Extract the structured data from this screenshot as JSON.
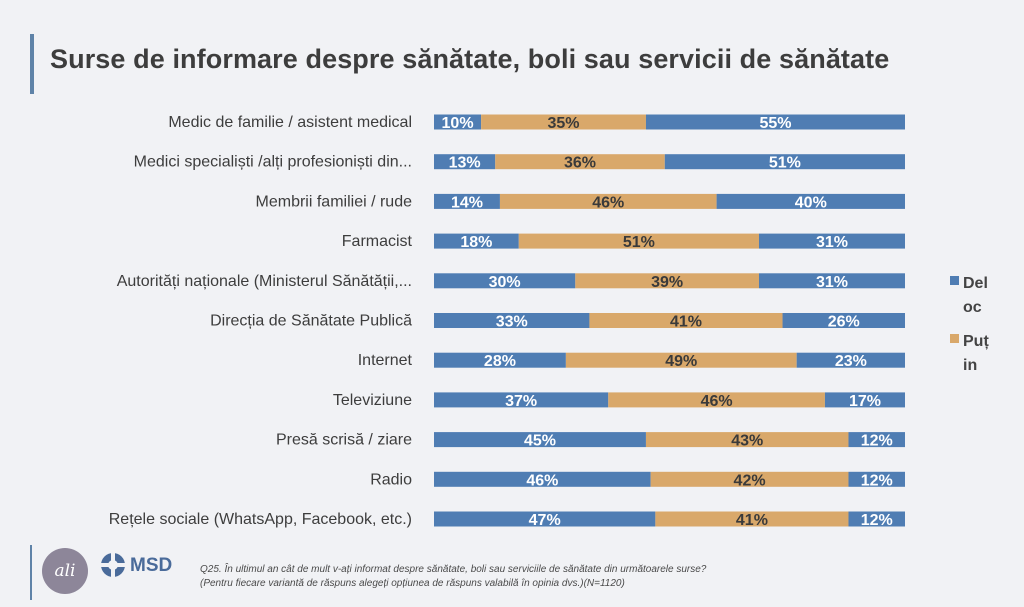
{
  "title": "Surse de informare despre sănătate, boli sau servicii de sănătate",
  "colors": {
    "dark": "#4f7db3",
    "light": "#d9a86a",
    "accent": "#5f83a8"
  },
  "legend": [
    {
      "label": "Deloc",
      "line1": "Del",
      "line2": "oc",
      "color": "#4f7db3"
    },
    {
      "label": "Puțin",
      "line1": "Puț",
      "line2": "in",
      "color": "#d9a86a"
    }
  ],
  "chart_data": {
    "type": "bar",
    "orientation": "horizontal",
    "stacked": true,
    "normalized_percent": true,
    "categories": [
      "Medic de familie / asistent medical",
      "Medici specialiști /alți profesioniști din...",
      "Membrii familiei / rude",
      "Farmacist",
      "Autorități naționale (Ministerul Sănătății,...",
      "Direcția de Sănătate Publică",
      "Internet",
      "Televiziune",
      "Presă scrisă / ziare",
      "Radio",
      "Rețele sociale (WhatsApp, Facebook, etc.)"
    ],
    "series": [
      {
        "name": "Deloc",
        "color": "#4f7db3",
        "values": [
          10,
          13,
          14,
          18,
          30,
          33,
          28,
          37,
          45,
          46,
          47
        ]
      },
      {
        "name": "Puțin",
        "color": "#d9a86a",
        "values": [
          35,
          36,
          46,
          51,
          39,
          41,
          49,
          46,
          43,
          42,
          41
        ]
      },
      {
        "color": "#4f7db3",
        "values": [
          55,
          51,
          40,
          31,
          31,
          26,
          23,
          17,
          12,
          12,
          12
        ]
      }
    ],
    "data_label_format": "{v}%",
    "legend_position": "right"
  },
  "footer": {
    "logo_text": "ali",
    "brand": "MSD",
    "question_line1": "Q25. În ultimul an cât de mult v-ați informat despre sănătate, boli sau serviciile de sănătate din următoarele surse?",
    "question_line2": "(Pentru fiecare variantă de răspuns alegeți opțiunea de răspuns valabilă în opinia dvs.)(N=1120)"
  }
}
